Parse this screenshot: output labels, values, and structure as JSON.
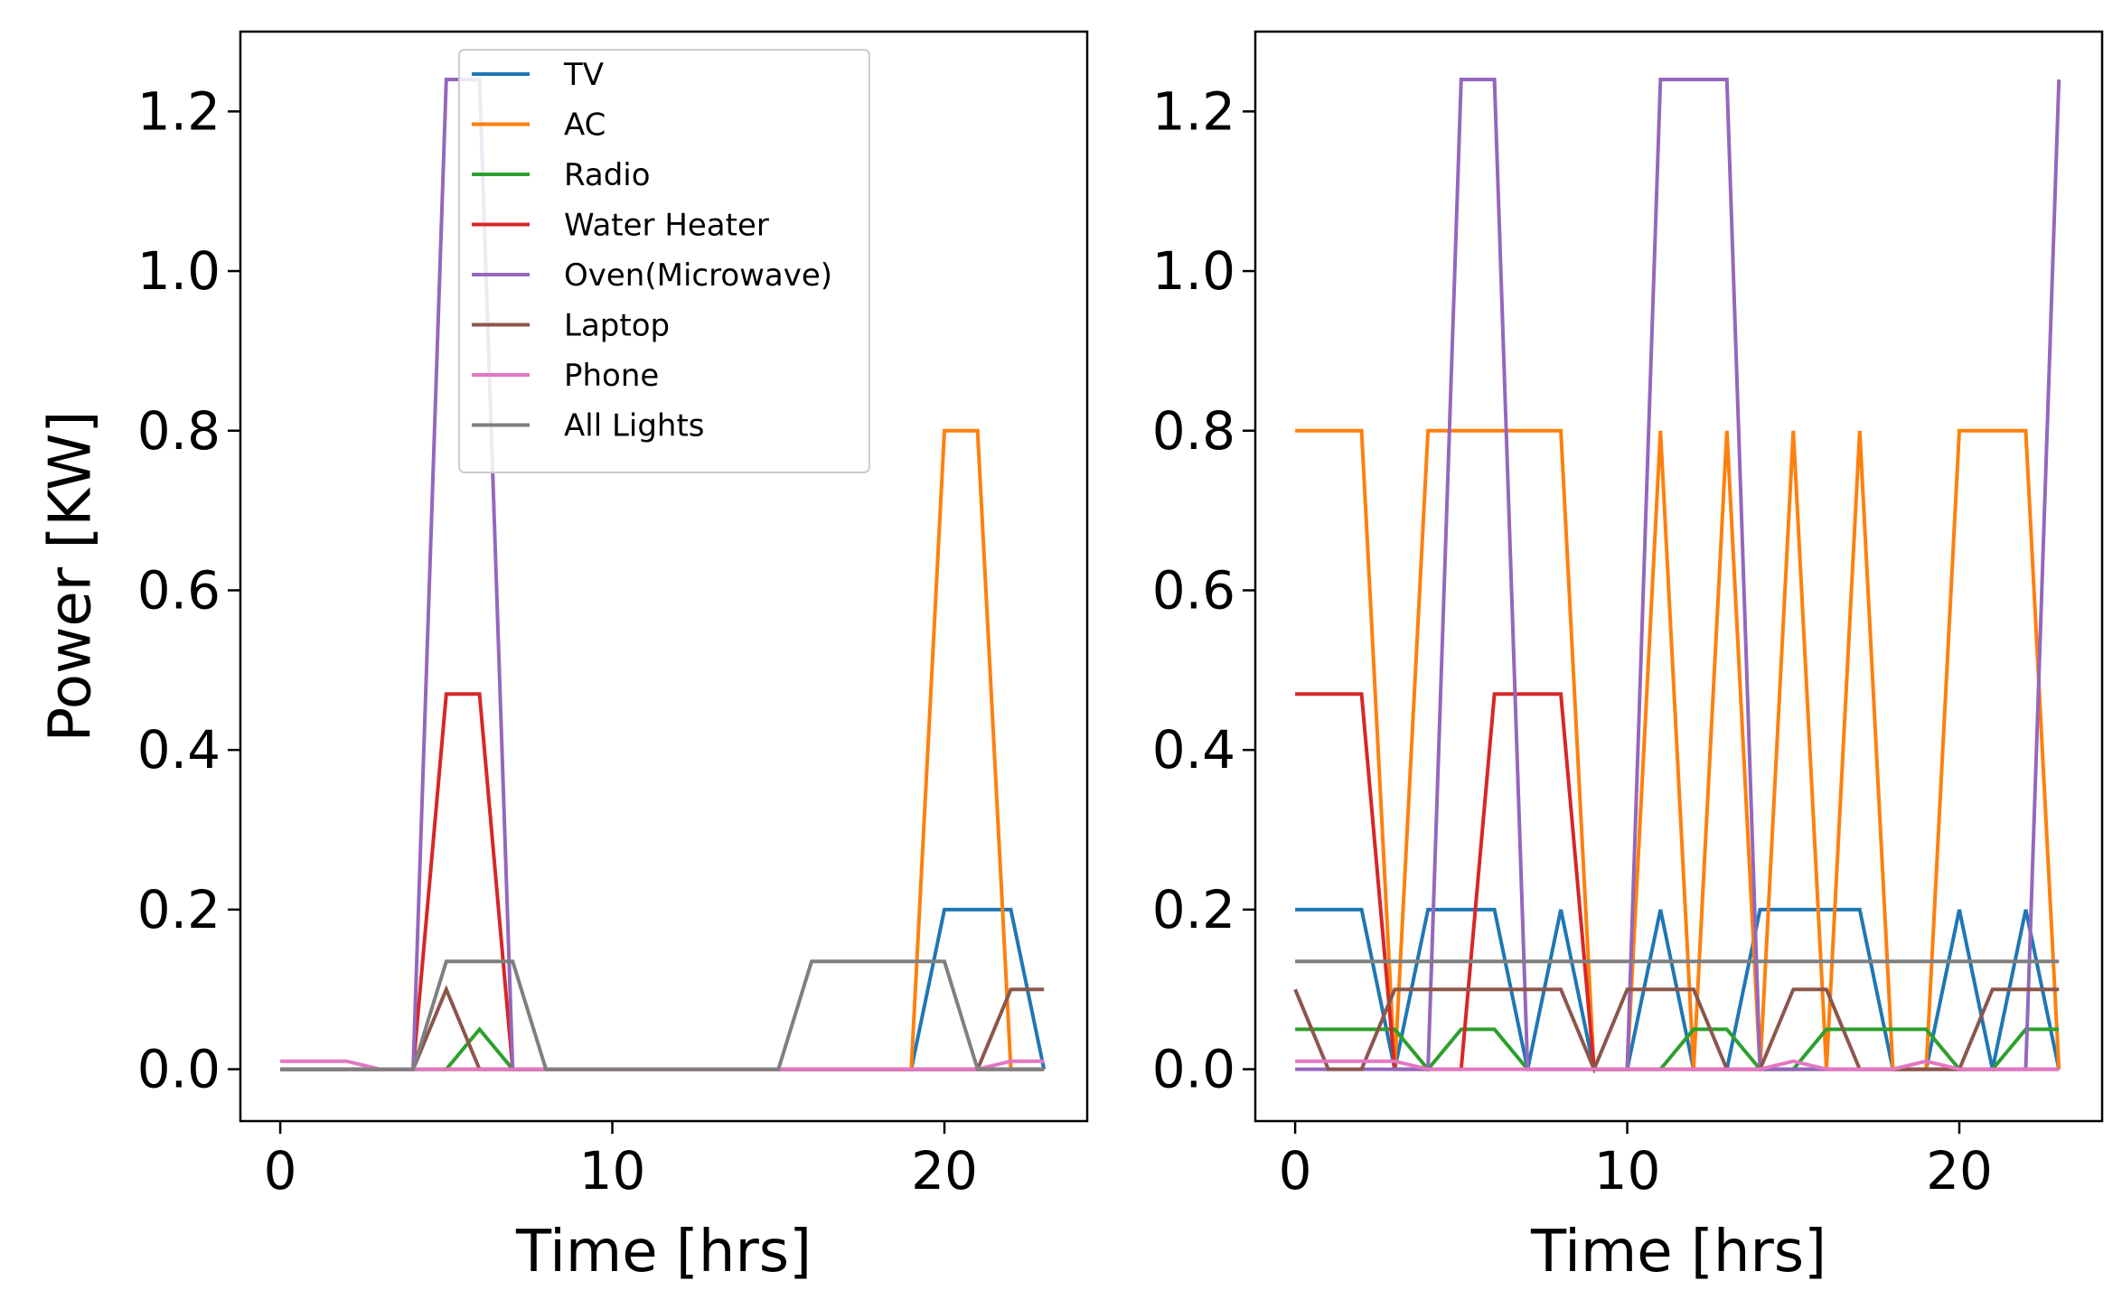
{
  "chart_data": [
    {
      "type": "line",
      "title": "",
      "xlabel": "Time [hrs]",
      "ylabel": "Power [KW]",
      "xlim": [
        -1.2,
        24.3
      ],
      "ylim": [
        -0.065,
        1.3
      ],
      "xticks": [
        0,
        10,
        20
      ],
      "xtick_labels": [
        "0",
        "10",
        "20"
      ],
      "yticks": [
        0.0,
        0.2,
        0.4,
        0.6,
        0.8,
        1.0,
        1.2
      ],
      "ytick_labels": [
        "0.0",
        "0.2",
        "0.4",
        "0.6",
        "0.8",
        "1.0",
        "1.2"
      ],
      "grid": false,
      "legend_position": "top-center",
      "x": [
        0,
        1,
        2,
        3,
        4,
        5,
        6,
        7,
        8,
        9,
        10,
        11,
        12,
        13,
        14,
        15,
        16,
        17,
        18,
        19,
        20,
        21,
        22,
        23
      ],
      "series": [
        {
          "name": "TV",
          "color": "#1f77b4",
          "values": [
            0,
            0,
            0,
            0,
            0,
            0,
            0,
            0,
            0,
            0,
            0,
            0,
            0,
            0,
            0,
            0,
            0,
            0,
            0,
            0,
            0.2,
            0.2,
            0.2,
            0
          ]
        },
        {
          "name": "AC",
          "color": "#ff7f0e",
          "values": [
            0,
            0,
            0,
            0,
            0,
            0,
            0,
            0,
            0,
            0,
            0,
            0,
            0,
            0,
            0,
            0,
            0,
            0,
            0,
            0,
            0.8,
            0.8,
            0,
            0
          ]
        },
        {
          "name": "Radio",
          "color": "#2ca02c",
          "values": [
            0,
            0,
            0,
            0,
            0,
            0,
            0.05,
            0,
            0,
            0,
            0,
            0,
            0,
            0,
            0,
            0,
            0,
            0,
            0,
            0,
            0,
            0,
            0,
            0
          ]
        },
        {
          "name": "Water Heater",
          "color": "#d62728",
          "values": [
            0,
            0,
            0,
            0,
            0,
            0.47,
            0.47,
            0,
            0,
            0,
            0,
            0,
            0,
            0,
            0,
            0,
            0,
            0,
            0,
            0,
            0,
            0,
            0,
            0
          ]
        },
        {
          "name": "Oven(Microwave)",
          "color": "#9467bd",
          "values": [
            0,
            0,
            0,
            0,
            0,
            1.24,
            1.24,
            0,
            0,
            0,
            0,
            0,
            0,
            0,
            0,
            0,
            0,
            0,
            0,
            0,
            0,
            0,
            0,
            0
          ]
        },
        {
          "name": "Laptop",
          "color": "#8c564b",
          "values": [
            0,
            0,
            0,
            0,
            0,
            0.1,
            0,
            0,
            0,
            0,
            0,
            0,
            0,
            0,
            0,
            0,
            0,
            0,
            0,
            0,
            0,
            0,
            0.1,
            0.1
          ]
        },
        {
          "name": "Phone",
          "color": "#e377c2",
          "values": [
            0.01,
            0.01,
            0.01,
            0,
            0,
            0,
            0,
            0,
            0,
            0,
            0,
            0,
            0,
            0,
            0,
            0,
            0,
            0,
            0,
            0,
            0,
            0,
            0.01,
            0.01
          ]
        },
        {
          "name": "All Lights",
          "color": "#7f7f7f",
          "values": [
            0,
            0,
            0,
            0,
            0,
            0.135,
            0.135,
            0.135,
            0,
            0,
            0,
            0,
            0,
            0,
            0,
            0,
            0.135,
            0.135,
            0.135,
            0.135,
            0.135,
            0,
            0,
            0
          ]
        }
      ]
    },
    {
      "type": "line",
      "title": "",
      "xlabel": "Time [hrs]",
      "ylabel": "",
      "xlim": [
        -1.2,
        24.3
      ],
      "ylim": [
        -0.065,
        1.3
      ],
      "xticks": [
        0,
        10,
        20
      ],
      "xtick_labels": [
        "0",
        "10",
        "20"
      ],
      "yticks": [
        0.0,
        0.2,
        0.4,
        0.6,
        0.8,
        1.0,
        1.2
      ],
      "ytick_labels": [
        "0.0",
        "0.2",
        "0.4",
        "0.6",
        "0.8",
        "1.0",
        "1.2"
      ],
      "grid": false,
      "x": [
        0,
        1,
        2,
        3,
        4,
        5,
        6,
        7,
        8,
        9,
        10,
        11,
        12,
        13,
        14,
        15,
        16,
        17,
        18,
        19,
        20,
        21,
        22,
        23
      ],
      "series": [
        {
          "name": "TV",
          "color": "#1f77b4",
          "values": [
            0.2,
            0.2,
            0.2,
            0,
            0.2,
            0.2,
            0.2,
            0,
            0.2,
            0,
            0,
            0.2,
            0,
            0,
            0.2,
            0.2,
            0.2,
            0.2,
            0,
            0,
            0.2,
            0,
            0.2,
            0
          ]
        },
        {
          "name": "AC",
          "color": "#ff7f0e",
          "values": [
            0.8,
            0.8,
            0.8,
            0,
            0.8,
            0.8,
            0.8,
            0.8,
            0.8,
            0,
            0,
            0.8,
            0,
            0.8,
            0,
            0.8,
            0,
            0.8,
            0,
            0,
            0.8,
            0.8,
            0.8,
            0
          ]
        },
        {
          "name": "Radio",
          "color": "#2ca02c",
          "values": [
            0.05,
            0.05,
            0.05,
            0.05,
            0,
            0.05,
            0.05,
            0,
            0,
            0,
            0,
            0,
            0.05,
            0.05,
            0,
            0,
            0.05,
            0.05,
            0.05,
            0.05,
            0,
            0,
            0.05,
            0.05
          ]
        },
        {
          "name": "Water Heater",
          "color": "#d62728",
          "values": [
            0.47,
            0.47,
            0.47,
            0,
            0,
            0,
            0.47,
            0.47,
            0.47,
            0,
            0,
            0,
            0,
            0,
            0,
            0,
            0,
            0,
            0,
            0,
            0,
            0,
            0,
            0
          ]
        },
        {
          "name": "Oven(Microwave)",
          "color": "#9467bd",
          "values": [
            0,
            0,
            0,
            0,
            0,
            1.24,
            1.24,
            0,
            0,
            0,
            0,
            1.24,
            1.24,
            1.24,
            0,
            0,
            0,
            0,
            0,
            0,
            0,
            0,
            0,
            1.24
          ]
        },
        {
          "name": "Laptop",
          "color": "#8c564b",
          "values": [
            0.1,
            0,
            0,
            0.1,
            0.1,
            0.1,
            0.1,
            0.1,
            0.1,
            0,
            0.1,
            0.1,
            0.1,
            0,
            0,
            0.1,
            0.1,
            0,
            0,
            0,
            0,
            0.1,
            0.1,
            0.1
          ]
        },
        {
          "name": "Phone",
          "color": "#e377c2",
          "values": [
            0.01,
            0.01,
            0.01,
            0.01,
            0,
            0,
            0,
            0,
            0,
            0,
            0,
            0,
            0,
            0,
            0,
            0.01,
            0,
            0,
            0,
            0.01,
            0,
            0,
            0,
            0
          ]
        },
        {
          "name": "All Lights",
          "color": "#7f7f7f",
          "values": [
            0.135,
            0.135,
            0.135,
            0.135,
            0.135,
            0.135,
            0.135,
            0.135,
            0.135,
            0.135,
            0.135,
            0.135,
            0.135,
            0.135,
            0.135,
            0.135,
            0.135,
            0.135,
            0.135,
            0.135,
            0.135,
            0.135,
            0.135,
            0.135
          ]
        }
      ]
    }
  ]
}
